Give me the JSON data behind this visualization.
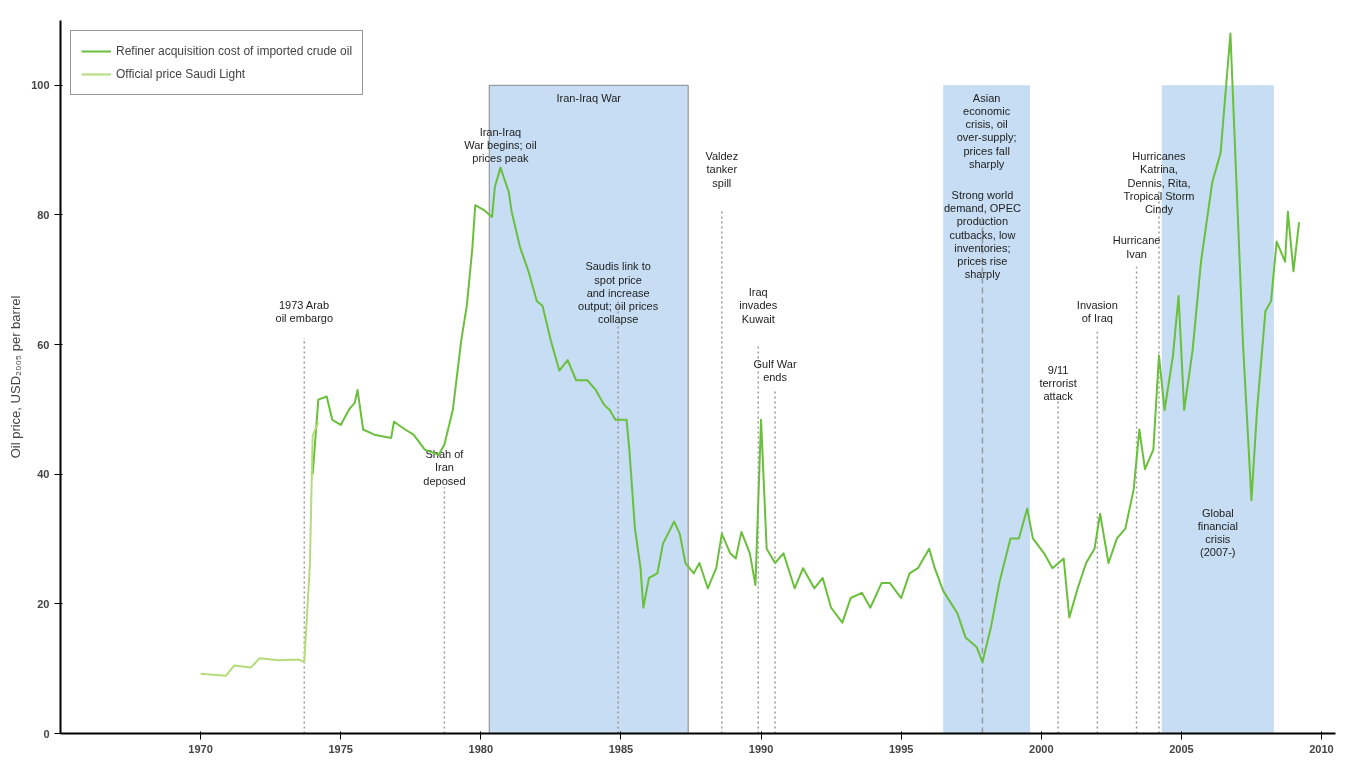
{
  "chart_data": {
    "type": "line",
    "ylabel": "Oil price, USD₂₀₀₅ per barrel",
    "xlim": [
      1965,
      2010.5
    ],
    "xticks": [
      1970,
      1975,
      1980,
      1985,
      1990,
      1995,
      2000,
      2005,
      2010
    ],
    "ylim": [
      0,
      110
    ],
    "yticks": [
      0,
      20,
      40,
      60,
      80,
      100
    ],
    "grid": false,
    "legend": "top left",
    "marker": "none",
    "line_style": "solid",
    "series": [
      {
        "name": "Refiner acquisition cost of imported crude oil",
        "color": "#6abf3c",
        "x": [
          1974.0,
          1974.2,
          1974.5,
          1974.7,
          1975.0,
          1975.3,
          1975.5,
          1975.6,
          1975.8,
          1976.2,
          1976.8,
          1976.9,
          1977.3,
          1977.6,
          1978.0,
          1978.5,
          1978.7,
          1979.0,
          1979.3,
          1979.5,
          1979.7,
          1979.8,
          1980.1,
          1980.4,
          1980.5,
          1980.7,
          1981.0,
          1981.1,
          1981.4,
          1981.7,
          1982.0,
          1982.2,
          1982.5,
          1982.8,
          1983.1,
          1983.4,
          1983.8,
          1984.1,
          1984.4,
          1984.6,
          1984.8,
          1985.2,
          1985.3,
          1985.5,
          1985.7,
          1985.8,
          1986.0,
          1986.3,
          1986.5,
          1986.9,
          1987.1,
          1987.3,
          1987.6,
          1987.8,
          1988.1,
          1988.4,
          1988.6,
          1988.9,
          1989.1,
          1989.3,
          1989.6,
          1989.8,
          1990.0,
          1990.2,
          1990.5,
          1990.8,
          1991.2,
          1991.5,
          1991.9,
          1992.2,
          1992.5,
          1992.9,
          1993.2,
          1993.6,
          1993.9,
          1994.3,
          1994.6,
          1995.0,
          1995.3,
          1995.6,
          1996.0,
          1996.2,
          1996.5,
          1997.0,
          1997.3,
          1997.7,
          1997.9,
          1998.2,
          1998.5,
          1998.9,
          1999.2,
          1999.5,
          1999.7,
          2000.1,
          2000.4,
          2000.8,
          2001.0,
          2001.3,
          2001.6,
          2001.9,
          2002.1,
          2002.4,
          2002.7,
          2003.0,
          2003.3,
          2003.5,
          2003.7,
          2004.0,
          2004.2,
          2004.4,
          2004.7,
          2004.9,
          2005.1,
          2005.4,
          2005.7,
          2006.1,
          2006.4,
          2006.75,
          2007.2,
          2007.5,
          2007.7,
          2008.0,
          2008.2,
          2008.4,
          2008.7,
          2008.8,
          2009.0,
          2009.2
        ],
        "values": [
          40,
          51.5,
          52,
          48.4,
          47.6,
          50,
          51,
          53,
          46.9,
          46.1,
          45.6,
          48.1,
          46.9,
          46.1,
          43.8,
          43,
          44.6,
          49.9,
          60.6,
          66,
          75,
          81.5,
          80.8,
          79.7,
          84.3,
          87.3,
          83.5,
          80.5,
          75,
          71.3,
          66.7,
          66,
          60.6,
          56,
          57.6,
          54.5,
          54.5,
          53,
          50.7,
          49.9,
          48.4,
          48.4,
          43.8,
          31.6,
          25.5,
          19.4,
          24,
          24.7,
          29.3,
          32.7,
          30.8,
          26.3,
          24.7,
          26.3,
          22.4,
          25.5,
          30.8,
          27.8,
          27,
          31.1,
          27.8,
          22.9,
          48.4,
          28.5,
          26.3,
          27.8,
          22.4,
          25.5,
          22.4,
          24,
          19.4,
          17.1,
          20.9,
          21.7,
          19.4,
          23.2,
          23.2,
          20.9,
          24.7,
          25.5,
          28.5,
          25.5,
          22,
          18.6,
          14.8,
          13.3,
          11,
          16.3,
          23.2,
          30.1,
          30.1,
          34.7,
          30.1,
          27.8,
          25.5,
          27,
          17.9,
          22.4,
          26.3,
          28.5,
          33.9,
          26.3,
          30.1,
          31.6,
          37.7,
          46.9,
          40.8,
          43.8,
          58.3,
          49.9,
          58.3,
          67.5,
          49.9,
          59.1,
          72.8,
          85,
          89.6,
          108,
          60,
          36,
          49.9,
          65.2,
          66.7,
          75.9,
          72.8,
          80.5,
          71.3,
          78.9
        ]
      },
      {
        "name": "Official price Saudi Light",
        "color": "#b5dc7a",
        "x": [
          1970.0,
          1970.9,
          1971.2,
          1971.8,
          1972.1,
          1972.8,
          1973.5,
          1973.7,
          1973.9,
          1974.0,
          1974.2
        ],
        "values": [
          9.2,
          8.9,
          10.5,
          10.2,
          11.6,
          11.3,
          11.4,
          11.0,
          26,
          46,
          48
        ]
      }
    ],
    "bands": [
      {
        "axis": "x",
        "from": 1980.3,
        "to": 1987.4,
        "label": "Iran-Iraq War",
        "color": "#c6ddf3"
      },
      {
        "axis": "x",
        "from": 1996.5,
        "to": 1999.6,
        "label": "Asian\neconomic\ncrisis, oil\nover-supply;\nprices fall\nsharply",
        "color": "#c6ddf3"
      },
      {
        "axis": "x",
        "from": 2004.3,
        "to": 2008.3,
        "label": "Global\nfinancial\ncrisis\n(2007-)",
        "color": "#c6ddf3"
      }
    ],
    "ref_lines": [
      {
        "axis": "x",
        "value": 1973.7,
        "label": "1973 Arab\noil embargo",
        "line_style": "dotted"
      },
      {
        "axis": "x",
        "value": 1978.7,
        "label": "Shah of\nIran\ndeposed",
        "line_style": "dotted"
      },
      {
        "axis": "x",
        "value": 1984.9,
        "label": "Saudis link to\nspot price\nand increase\noutput; oil prices\ncollapse",
        "line_style": "dotted"
      },
      {
        "axis": "x",
        "value": 1988.6,
        "label": "Valdez\ntanker\nspill",
        "line_style": "dotted"
      },
      {
        "axis": "x",
        "value": 1989.9,
        "label": "Iraq\ninvades\nKuwait",
        "line_style": "dotted"
      },
      {
        "axis": "x",
        "value": 1990.5,
        "label": "Gulf War\nends",
        "line_style": "dotted"
      },
      {
        "axis": "x",
        "value": 1997.9,
        "label": "Strong world\ndemand, OPEC\nproduction\ncutbacks, low\ninventories;\nprices rise\nsharply",
        "line_style": "dashed"
      },
      {
        "axis": "x",
        "value": 2000.6,
        "label": "9/11\nterrorist\nattack",
        "line_style": "dotted"
      },
      {
        "axis": "x",
        "value": 2002.0,
        "label": "Invasion\nof Iraq",
        "line_style": "dotted"
      },
      {
        "axis": "x",
        "value": 2003.4,
        "label": "Hurricane\nIvan",
        "line_style": "dotted"
      },
      {
        "axis": "x",
        "value": 2004.2,
        "label": "Hurricanes\nKatrina,\nDennis, Rita,\nTropical Storm\nCindy",
        "line_style": "dotted"
      }
    ],
    "annotations": [
      {
        "text": "Iran-Iraq\nWar begins; oil\nprices peak",
        "x": 1980.7,
        "y": 87.3
      }
    ]
  }
}
